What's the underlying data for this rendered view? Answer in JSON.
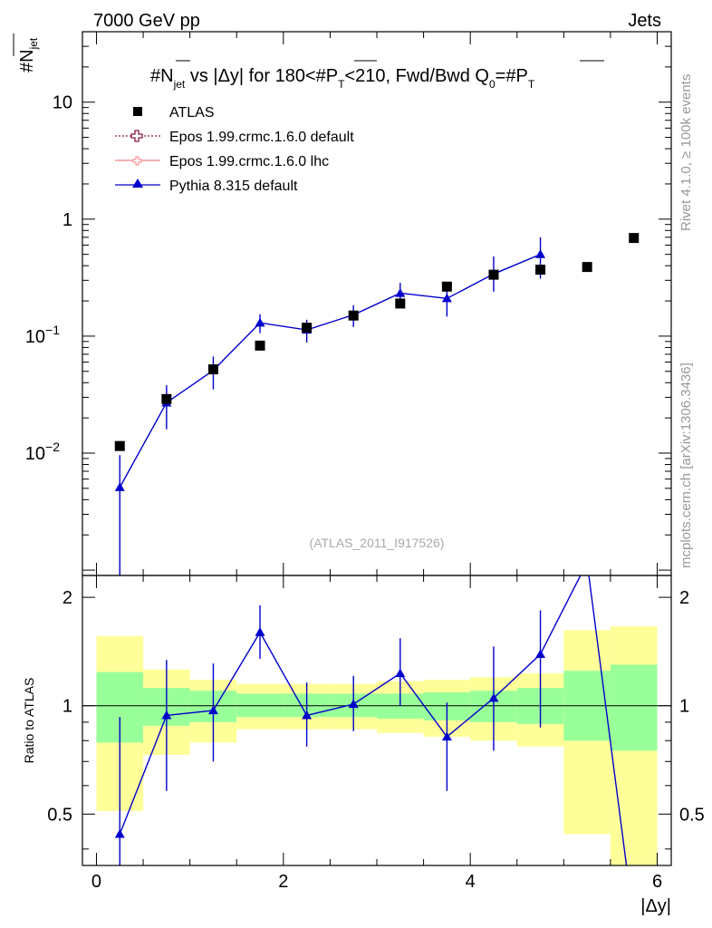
{
  "header": {
    "left": "7000 GeV pp",
    "right": "Jets"
  },
  "side_labels": {
    "rivet": "Rivet 4.1.0, ≥ 100k events",
    "mcplots": "mcplots.cern.ch [arXiv:1306.3436]"
  },
  "chart_data": {
    "type": "scatter",
    "title": "#N_jet vs |Δy| for 180<#P_T<210, Fwd/Bwd Q_0=#P_T",
    "title_parts": {
      "a": "#N",
      "a_sub": "jet",
      "b": " vs |Δy| for 180<#P",
      "b_sub": "T",
      "c": "<210, Fwd/Bwd Q",
      "c_sub": "0",
      "d": "=#P",
      "d_sub": "T"
    },
    "ylabel": "#N_jet",
    "ylabel_parts": {
      "main": "#N",
      "sub": "jet"
    },
    "xlabel": "|Δy|",
    "watermark": "(ATLAS_2011_I917526)",
    "xlim": [
      -0.15,
      6.15
    ],
    "ylim": [
      0.0009,
      40
    ],
    "yscale": "log",
    "x_ticks": [
      {
        "value": 0,
        "label": "0"
      },
      {
        "value": 2,
        "label": "2"
      },
      {
        "value": 4,
        "label": "4"
      },
      {
        "value": 6,
        "label": "6"
      }
    ],
    "y_ticks": [
      {
        "value": 0.01,
        "base": "10",
        "exp": "−2"
      },
      {
        "value": 0.1,
        "base": "10",
        "exp": "−1"
      },
      {
        "value": 1,
        "base": "1",
        "exp": ""
      },
      {
        "value": 10,
        "base": "10",
        "exp": ""
      }
    ],
    "legend": [
      {
        "label": "ATLAS",
        "style": "square",
        "color": "#000000"
      },
      {
        "label": "Epos 1.99.crmc.1.6.0 default",
        "style": "open-cross",
        "color": "#8b1a3a"
      },
      {
        "label": "Epos 1.99.crmc.1.6.0 lhc",
        "style": "small-cross",
        "color": "#f08080"
      },
      {
        "label": "Pythia 8.315 default",
        "style": "triangle-line",
        "color": "#0000cc"
      }
    ],
    "x_edges": [
      0,
      0.5,
      1,
      1.5,
      2,
      2.5,
      3,
      3.5,
      4,
      4.5,
      5,
      5.5,
      6
    ],
    "series": [
      {
        "name": "ATLAS",
        "color": "#000000",
        "x": [
          0.25,
          0.75,
          1.25,
          1.75,
          2.25,
          2.75,
          3.25,
          3.75,
          4.25,
          4.75,
          5.25,
          5.75
        ],
        "values": [
          0.0115,
          0.029,
          0.052,
          0.083,
          0.118,
          0.15,
          0.19,
          0.265,
          0.335,
          0.37,
          0.39,
          0.69
        ]
      },
      {
        "name": "Pythia 8.315 default",
        "color": "#0000cc",
        "x": [
          0.25,
          0.75,
          1.25,
          1.75,
          2.25,
          2.75,
          3.25,
          3.75,
          4.25,
          4.75
        ],
        "values": [
          0.0051,
          0.027,
          0.051,
          0.13,
          0.113,
          0.152,
          0.233,
          0.21,
          0.34,
          0.5
        ],
        "err_low": [
          0.0045,
          0.011,
          0.016,
          0.024,
          0.025,
          0.032,
          0.042,
          0.063,
          0.1,
          0.19
        ],
        "err_high": [
          0.0045,
          0.011,
          0.016,
          0.024,
          0.025,
          0.032,
          0.052,
          0.075,
          0.14,
          0.2
        ]
      }
    ],
    "ratio": {
      "ylabel": "Ratio to ATLAS",
      "ylim": [
        0.36,
        2.3
      ],
      "yscale": "log",
      "y_ticks": [
        {
          "value": 0.5,
          "label": "0.5"
        },
        {
          "value": 1,
          "label": "1"
        },
        {
          "value": 2,
          "label": "2"
        }
      ],
      "band_inner_color": "#99ff99",
      "band_outer_color": "#ffff99",
      "band_inner": {
        "low": [
          0.79,
          0.88,
          0.9,
          0.93,
          0.93,
          0.93,
          0.92,
          0.91,
          0.9,
          0.89,
          0.8,
          0.75
        ],
        "high": [
          1.24,
          1.12,
          1.1,
          1.08,
          1.08,
          1.08,
          1.08,
          1.09,
          1.1,
          1.12,
          1.25,
          1.3
        ]
      },
      "band_outer": {
        "low": [
          0.51,
          0.73,
          0.79,
          0.86,
          0.86,
          0.86,
          0.84,
          0.82,
          0.8,
          0.77,
          0.44,
          0.35
        ],
        "high": [
          1.56,
          1.26,
          1.18,
          1.15,
          1.15,
          1.15,
          1.17,
          1.18,
          1.2,
          1.23,
          1.62,
          1.66
        ]
      },
      "pythia": {
        "x": [
          0.25,
          0.75,
          1.25,
          1.75,
          2.25,
          2.75,
          3.25,
          3.75,
          4.25,
          4.75,
          5.25,
          5.75
        ],
        "values": [
          0.44,
          0.94,
          0.97,
          1.6,
          0.94,
          1.01,
          1.23,
          0.82,
          1.05,
          1.39,
          2.5,
          0.25
        ],
        "err_low": [
          0.4,
          0.36,
          0.27,
          0.25,
          0.17,
          0.16,
          0.23,
          0.24,
          0.3,
          0.52,
          0,
          0
        ],
        "err_high": [
          0.49,
          0.4,
          0.34,
          0.3,
          0.22,
          0.2,
          0.31,
          0.2,
          0.41,
          0.45,
          0,
          0
        ],
        "has_marker": [
          true,
          true,
          true,
          true,
          true,
          true,
          true,
          true,
          true,
          true,
          false,
          false
        ]
      }
    }
  }
}
